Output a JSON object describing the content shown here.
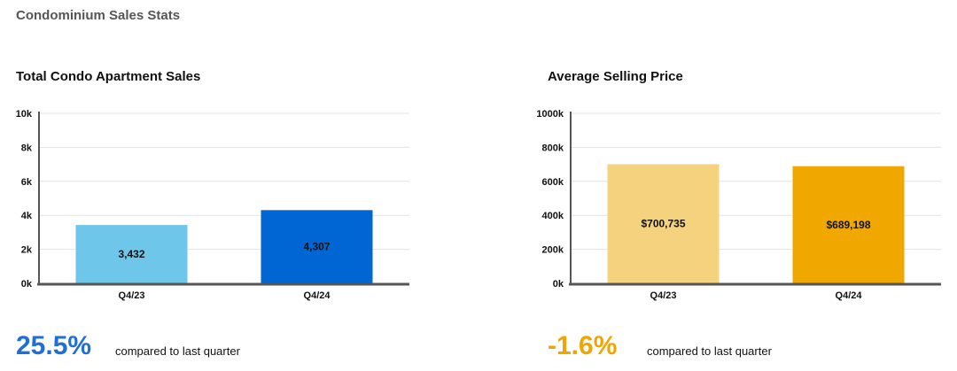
{
  "page": {
    "title": "Condominium Sales Stats"
  },
  "charts": [
    {
      "title": "Total Condo Apartment Sales",
      "stat": {
        "value": "25.5%",
        "caption": "compared to last quarter",
        "color": "#1f6fd6"
      }
    },
    {
      "title": "Average Selling Price",
      "stat": {
        "value": "-1.6%",
        "caption": "compared to last quarter",
        "color": "#f0a500"
      }
    }
  ],
  "chart_data": [
    {
      "type": "bar",
      "title": "Total Condo Apartment Sales",
      "categories": [
        "Q4/23",
        "Q4/24"
      ],
      "values": [
        3432,
        4307
      ],
      "value_labels": [
        "3,432",
        "4,307"
      ],
      "bar_colors": [
        "#6ec6ea",
        "#0066d4"
      ],
      "label_colors": [
        "#111111",
        "#111111"
      ],
      "ylim": [
        0,
        10000
      ],
      "yticks": [
        0,
        2000,
        4000,
        6000,
        8000,
        10000
      ],
      "ytick_labels": [
        "0k",
        "2k",
        "4k",
        "6k",
        "8k",
        "10k"
      ],
      "grid": true
    },
    {
      "type": "bar",
      "title": "Average Selling Price",
      "categories": [
        "Q4/23",
        "Q4/24"
      ],
      "values": [
        700735,
        689198
      ],
      "value_labels": [
        "$700,735",
        "$689,198"
      ],
      "bar_colors": [
        "#f5d27e",
        "#f0a800"
      ],
      "label_colors": [
        "#111111",
        "#111111"
      ],
      "ylim": [
        0,
        1000000
      ],
      "yticks": [
        0,
        200000,
        400000,
        600000,
        800000,
        1000000
      ],
      "ytick_labels": [
        "0k",
        "200k",
        "400k",
        "600k",
        "800k",
        "1000k"
      ],
      "grid": true
    }
  ]
}
